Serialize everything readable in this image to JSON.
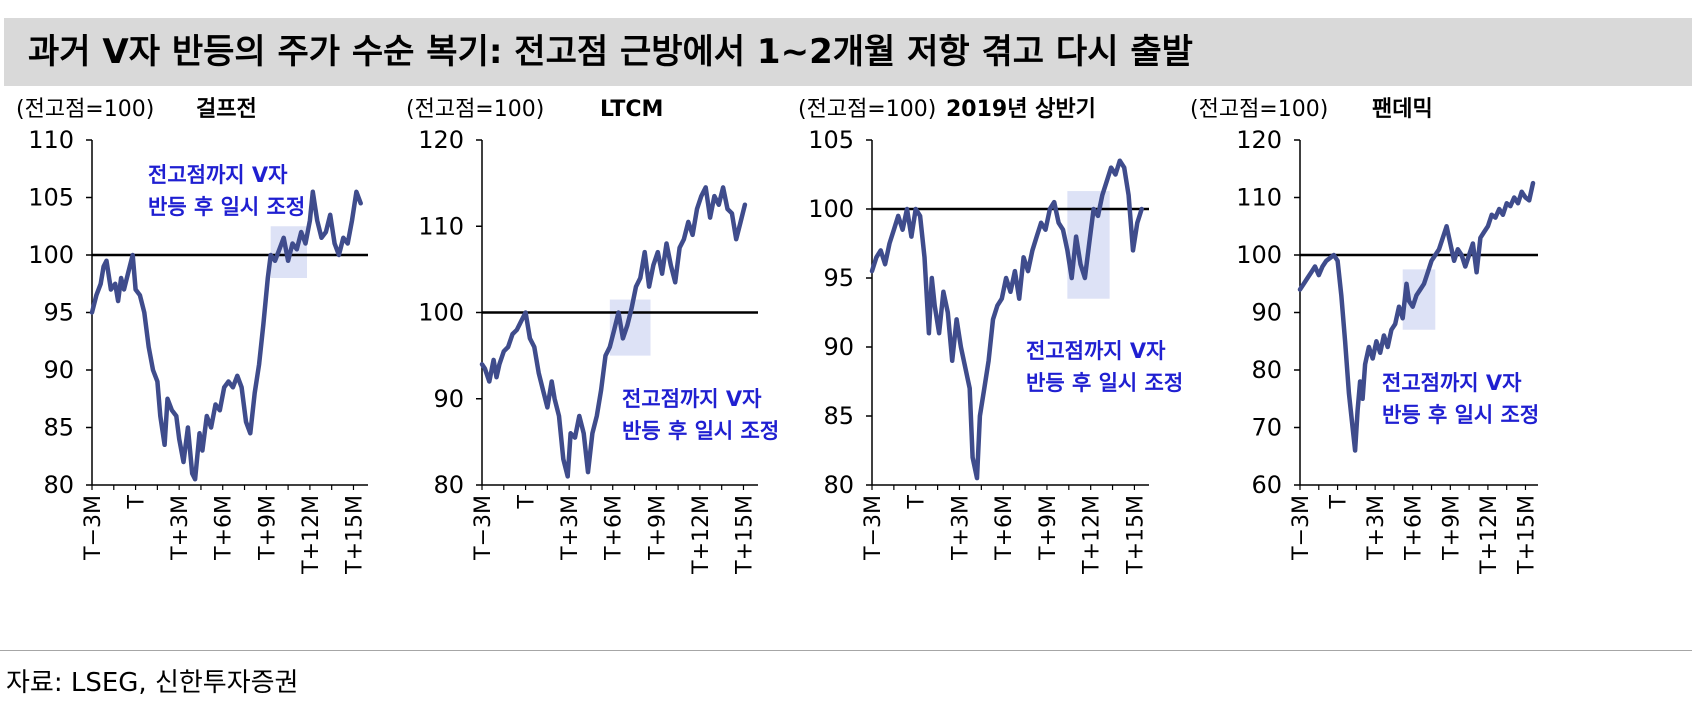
{
  "title": "과거 V자 반등의 주가 수순 복기: 전고점 근방에서 1~2개월 저항 겪고 다시 출발",
  "source": "자료: LSEG, 신한투자증권",
  "colors": {
    "line": "#3f4c8c",
    "highlight": "#dde2f6",
    "annotation": "#1f1fd1",
    "reference": "#000000",
    "title_bg": "#d9d9d9"
  },
  "chart_data": [
    {
      "type": "line",
      "title": "걸프전",
      "unit_label": "(전고점=100)",
      "ylim": [
        80,
        110
      ],
      "yticks": [
        80,
        85,
        90,
        95,
        100,
        105,
        110
      ],
      "xlim": [
        -3,
        16
      ],
      "xticks": [
        -3,
        0,
        3,
        6,
        9,
        12,
        15
      ],
      "xtick_labels": [
        "T−3M",
        "T",
        "T+3M",
        "T+6M",
        "T+9M",
        "T+12M",
        "T+15M"
      ],
      "reference_line": 100,
      "highlight": {
        "x": [
          9.3,
          11.8
        ],
        "y": [
          98,
          102.5
        ]
      },
      "annotation": [
        "전고점까지 V자",
        "반등 후 일시 조정"
      ],
      "series": [
        {
          "x": [
            -3,
            -2.7,
            -2.4,
            -2.2,
            -2,
            -1.7,
            -1.4,
            -1.2,
            -1,
            -0.8,
            -0.5,
            -0.2,
            0,
            0.3,
            0.6,
            0.9,
            1.2,
            1.5,
            1.7,
            2,
            2.2,
            2.5,
            2.8,
            3,
            3.3,
            3.6,
            3.9,
            4.1,
            4.4,
            4.6,
            4.9,
            5.2,
            5.5,
            5.8,
            6.1,
            6.4,
            6.7,
            7,
            7.3,
            7.6,
            7.9,
            8.2,
            8.5,
            8.8,
            9.1,
            9.3,
            9.6,
            9.9,
            10.2,
            10.5,
            10.8,
            11.1,
            11.4,
            11.7,
            12,
            12.2,
            12.5,
            12.8,
            13.1,
            13.4,
            13.7,
            14,
            14.3,
            14.6,
            14.9,
            15.2,
            15.5
          ],
          "y": [
            95,
            96.5,
            97.5,
            99,
            99.5,
            97,
            97.5,
            96,
            98,
            97,
            98.5,
            100,
            97,
            96.5,
            95,
            92,
            90,
            89,
            86,
            83.5,
            87.5,
            86.5,
            86,
            84,
            82,
            85,
            81,
            80.5,
            84.5,
            83,
            86,
            85,
            87,
            86.5,
            88.5,
            89,
            88.5,
            89.5,
            88.5,
            85.5,
            84.5,
            88,
            90.5,
            94,
            98,
            100,
            99.5,
            100.5,
            101.5,
            99.5,
            101,
            100.5,
            102,
            101,
            103,
            105.5,
            103,
            101.5,
            102,
            103.5,
            101,
            100,
            101.5,
            101,
            103,
            105.5,
            104.5
          ]
        }
      ]
    },
    {
      "type": "line",
      "title": "LTCM",
      "unit_label": "(전고점=100)",
      "ylim": [
        80,
        120
      ],
      "yticks": [
        80,
        90,
        100,
        110,
        120
      ],
      "xlim": [
        -3,
        16
      ],
      "xticks": [
        -3,
        0,
        3,
        6,
        9,
        12,
        15
      ],
      "xtick_labels": [
        "T−3M",
        "T",
        "T+3M",
        "T+6M",
        "T+9M",
        "T+12M",
        "T+15M"
      ],
      "reference_line": 100,
      "highlight": {
        "x": [
          5.8,
          8.6
        ],
        "y": [
          95,
          101.5
        ]
      },
      "annotation": [
        "전고점까지 V자",
        "반등 후 일시 조정"
      ],
      "series": [
        {
          "x": [
            -3,
            -2.8,
            -2.5,
            -2.2,
            -2,
            -1.8,
            -1.5,
            -1.2,
            -0.9,
            -0.6,
            -0.3,
            0,
            0.3,
            0.6,
            0.9,
            1.2,
            1.5,
            1.8,
            2,
            2.3,
            2.6,
            2.9,
            3.1,
            3.4,
            3.7,
            4,
            4.3,
            4.6,
            4.9,
            5.2,
            5.5,
            5.8,
            6.1,
            6.4,
            6.7,
            7,
            7.3,
            7.6,
            7.9,
            8.2,
            8.5,
            8.8,
            9.1,
            9.4,
            9.7,
            10,
            10.3,
            10.6,
            10.9,
            11.2,
            11.5,
            11.8,
            12.1,
            12.4,
            12.7,
            13,
            13.3,
            13.6,
            13.9,
            14.2,
            14.5,
            14.8,
            15.1
          ],
          "y": [
            94,
            93.5,
            92,
            94.5,
            92.5,
            94,
            95.5,
            96,
            97.5,
            98,
            99,
            100,
            97,
            96,
            93,
            91,
            89,
            92,
            90,
            88,
            83,
            81,
            86,
            85.5,
            88,
            86,
            81.5,
            86,
            88,
            91,
            95,
            96,
            98,
            100,
            97,
            98.5,
            100.5,
            103,
            104,
            107,
            103,
            105.5,
            107,
            104.5,
            108,
            105.5,
            103.5,
            107.5,
            108.5,
            110.5,
            109,
            112,
            113.5,
            114.5,
            111,
            113.5,
            112.5,
            114.5,
            112,
            111.5,
            108.5,
            110.5,
            112.5
          ]
        }
      ]
    },
    {
      "type": "line",
      "title": "2019년 상반기",
      "unit_label": "(전고점=100)",
      "ylim": [
        80,
        105
      ],
      "yticks": [
        80,
        85,
        90,
        95,
        100,
        105
      ],
      "xlim": [
        -3,
        16
      ],
      "xticks": [
        -3,
        0,
        3,
        6,
        9,
        12,
        15
      ],
      "xtick_labels": [
        "T−3M",
        "T",
        "T+3M",
        "T+6M",
        "T+9M",
        "T+12M",
        "T+15M"
      ],
      "reference_line": 100,
      "highlight": {
        "x": [
          10.4,
          13.3
        ],
        "y": [
          93.5,
          101.3
        ]
      },
      "annotation": [
        "전고점까지 V자",
        "반등 후 일시 조정"
      ],
      "series": [
        {
          "x": [
            -3,
            -2.7,
            -2.4,
            -2.1,
            -1.8,
            -1.5,
            -1.2,
            -0.9,
            -0.6,
            -0.3,
            0,
            0.3,
            0.6,
            0.9,
            1.1,
            1.3,
            1.6,
            1.9,
            2.2,
            2.5,
            2.8,
            3.1,
            3.4,
            3.7,
            3.9,
            4.2,
            4.4,
            4.7,
            5,
            5.3,
            5.6,
            5.9,
            6.2,
            6.5,
            6.8,
            7.1,
            7.4,
            7.7,
            8,
            8.3,
            8.6,
            8.9,
            9.2,
            9.5,
            9.8,
            10.1,
            10.4,
            10.7,
            11,
            11.3,
            11.6,
            11.9,
            12.2,
            12.5,
            12.8,
            13.1,
            13.4,
            13.7,
            14,
            14.3,
            14.6,
            14.9,
            15.2,
            15.5
          ],
          "y": [
            95.5,
            96.5,
            97,
            96,
            97.5,
            98.5,
            99.5,
            98.5,
            100,
            98,
            100,
            99.5,
            96.5,
            91,
            95,
            93,
            91,
            94,
            92.5,
            89,
            92,
            90,
            88.5,
            87,
            82,
            80.5,
            85,
            87,
            89,
            92,
            93,
            93.5,
            95,
            94,
            95.5,
            93.5,
            96.5,
            95.5,
            97,
            98,
            99,
            98.5,
            100,
            100.5,
            99,
            98.5,
            97,
            95,
            98,
            96,
            95,
            97.5,
            100,
            99.5,
            101,
            102,
            103,
            102.5,
            103.5,
            103,
            101,
            97,
            99,
            100
          ]
        }
      ]
    },
    {
      "type": "line",
      "title": "팬데믹",
      "unit_label": "(전고점=100)",
      "ylim": [
        60,
        120
      ],
      "yticks": [
        60,
        70,
        80,
        90,
        100,
        110,
        120
      ],
      "xlim": [
        -3,
        16
      ],
      "xticks": [
        -3,
        0,
        3,
        6,
        9,
        12,
        15
      ],
      "xtick_labels": [
        "T−3M",
        "T",
        "T+3M",
        "T+6M",
        "T+9M",
        "T+12M",
        "T+15M"
      ],
      "reference_line": 100,
      "highlight": {
        "x": [
          5.2,
          7.8
        ],
        "y": [
          87,
          97.5
        ]
      },
      "annotation": [
        "전고점까지 V자",
        "반등 후 일시 조정"
      ],
      "series": [
        {
          "x": [
            -3,
            -2.7,
            -2.4,
            -2.1,
            -1.8,
            -1.5,
            -1.2,
            -0.9,
            -0.6,
            -0.3,
            0,
            0.3,
            0.6,
            0.9,
            1.2,
            1.4,
            1.6,
            1.8,
            2,
            2.2,
            2.5,
            2.8,
            3.1,
            3.4,
            3.7,
            4,
            4.3,
            4.6,
            4.9,
            5.2,
            5.5,
            5.7,
            6,
            6.3,
            6.6,
            6.9,
            7.2,
            7.5,
            7.8,
            8.1,
            8.4,
            8.7,
            9,
            9.3,
            9.6,
            9.9,
            10.2,
            10.5,
            10.8,
            11.1,
            11.4,
            11.7,
            12,
            12.3,
            12.6,
            12.9,
            13.2,
            13.5,
            13.8,
            14.1,
            14.4,
            14.7,
            15,
            15.3,
            15.6
          ],
          "y": [
            94,
            95,
            96,
            97,
            98,
            96.5,
            98,
            99,
            99.5,
            100,
            99,
            93,
            85,
            76,
            70,
            66,
            73,
            78,
            75,
            81,
            84,
            82,
            85,
            83,
            86,
            84,
            87,
            88,
            91,
            89,
            95,
            92,
            91,
            93,
            94,
            95,
            97,
            99,
            100,
            101,
            103,
            105,
            102,
            99,
            101,
            100,
            98,
            100,
            102,
            97,
            103,
            104,
            105,
            107,
            106.5,
            108,
            107,
            109,
            108.5,
            110,
            109,
            111,
            110,
            109.5,
            112.5
          ]
        }
      ]
    }
  ]
}
